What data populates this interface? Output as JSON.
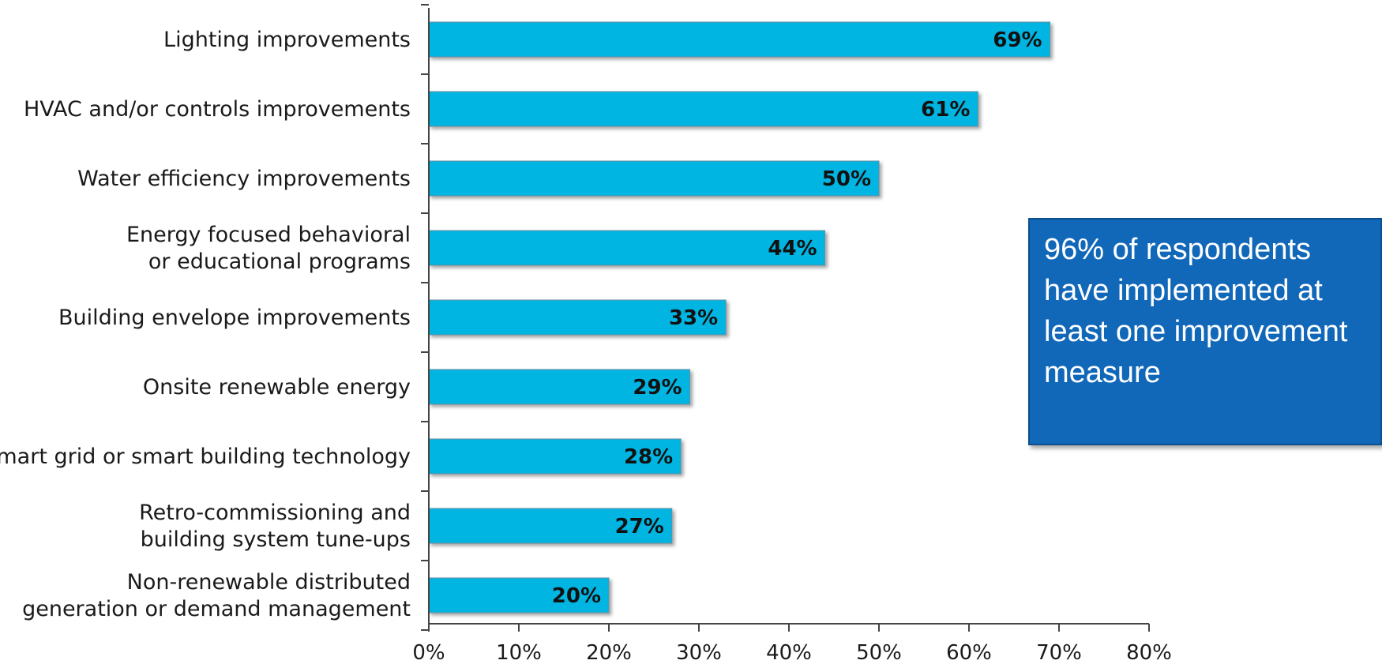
{
  "callout": {
    "text": "96% of respondents have implemented at least one improvement measure"
  },
  "colors": {
    "bar": "#00b5e2",
    "axis": "#444444",
    "callout_bg": "#1167b8"
  },
  "chart_data": {
    "type": "bar",
    "orientation": "horizontal",
    "title": "",
    "xlabel": "",
    "ylabel": "",
    "xlim": [
      0,
      80
    ],
    "grid": false,
    "categories": [
      [
        "Lighting improvements"
      ],
      [
        "HVAC and/or controls improvements"
      ],
      [
        "Water efficiency improvements"
      ],
      [
        "Energy focused behavioral",
        "or educational programs"
      ],
      [
        "Building envelope improvements"
      ],
      [
        "Onsite renewable energy"
      ],
      [
        "Smart grid or smart building technology"
      ],
      [
        "Retro-commissioning and",
        "building system tune-ups"
      ],
      [
        "Non-renewable distributed",
        "generation or demand management"
      ]
    ],
    "values": [
      69,
      61,
      50,
      44,
      33,
      29,
      28,
      27,
      20
    ],
    "value_labels": [
      "69%",
      "61%",
      "50%",
      "44%",
      "33%",
      "29%",
      "28%",
      "27%",
      "20%"
    ],
    "xticks": [
      0,
      10,
      20,
      30,
      40,
      50,
      60,
      70,
      80
    ],
    "xtick_labels": [
      "0%",
      "10%",
      "20%",
      "30%",
      "40%",
      "50%",
      "60%",
      "70%",
      "80%"
    ]
  }
}
